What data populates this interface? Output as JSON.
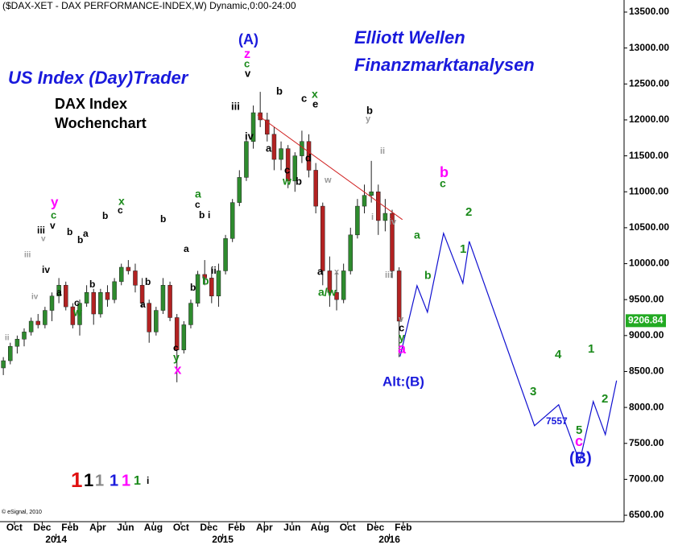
{
  "chart_data": {
    "type": "candlestick",
    "title": "($DAX-XET - DAX PERFORMANCE-INDEX,W) Dynamic,0:00-24:00",
    "copyright": "© eSignal, 2010",
    "up_color": "#2e8b2e",
    "down_color": "#b22222",
    "x": [
      -0.8,
      -0.3,
      0.2,
      0.7,
      1.2,
      1.7,
      2.2,
      2.7,
      3.2,
      3.7,
      4.2,
      4.7,
      5.2,
      5.7,
      6.2,
      6.7,
      7.2,
      7.7,
      8.2,
      8.7,
      9.2,
      9.7,
      10.2,
      10.7,
      11.2,
      11.7,
      12.2,
      12.7,
      13.2,
      13.7,
      14.2,
      14.7,
      15.2,
      15.7,
      16.2,
      16.7,
      17.2,
      17.7,
      18.2,
      18.7,
      19.2,
      19.7,
      20.2,
      20.7,
      21.2,
      21.7,
      22.2,
      22.7,
      23.2,
      23.7,
      24.2,
      24.7,
      25.2,
      25.7,
      26.2,
      26.7,
      27.2,
      27.7
    ],
    "open": [
      8550,
      8650,
      8850,
      8950,
      9050,
      9200,
      9150,
      9350,
      9550,
      9700,
      9400,
      9150,
      9450,
      9600,
      9300,
      9600,
      9500,
      9750,
      9950,
      9900,
      9700,
      9450,
      9050,
      9350,
      9700,
      9250,
      8800,
      9150,
      9450,
      9850,
      9800,
      9550,
      9900,
      10350,
      10850,
      11200,
      11700,
      12100,
      12000,
      11800,
      11450,
      11600,
      11150,
      11500,
      11700,
      11300,
      10800,
      9900,
      9600,
      9500,
      9900,
      10400,
      10800,
      10950,
      11000,
      10600,
      10700,
      9900
    ],
    "high": [
      8700,
      8900,
      9000,
      9100,
      9250,
      9300,
      9400,
      9600,
      9800,
      9750,
      9450,
      9500,
      9700,
      9650,
      9650,
      9700,
      9800,
      10000,
      10050,
      10000,
      9800,
      9500,
      9400,
      9800,
      9750,
      9300,
      9200,
      9500,
      9900,
      10050,
      9950,
      10000,
      10400,
      10900,
      11300,
      11800,
      12200,
      12390,
      12100,
      11900,
      11700,
      11650,
      11550,
      11850,
      11800,
      11400,
      10850,
      10100,
      9900,
      10000,
      10500,
      10900,
      11100,
      11430,
      11100,
      10900,
      10750,
      9950
    ],
    "low": [
      8450,
      8600,
      8750,
      8850,
      9000,
      9100,
      9100,
      9200,
      9450,
      9350,
      9100,
      9000,
      9400,
      9150,
      9250,
      9400,
      9450,
      9700,
      9850,
      9600,
      9400,
      8900,
      9000,
      9300,
      9200,
      8350,
      8750,
      9100,
      9400,
      9700,
      9450,
      9400,
      9850,
      10300,
      10800,
      11150,
      11600,
      11900,
      11700,
      11300,
      11300,
      11050,
      11000,
      11400,
      11200,
      10700,
      9700,
      9400,
      9350,
      9450,
      9850,
      10350,
      10700,
      10850,
      10400,
      10450,
      9800,
      8700
    ],
    "close": [
      8650,
      8850,
      8950,
      9050,
      9200,
      9150,
      9350,
      9550,
      9700,
      9400,
      9150,
      9450,
      9600,
      9300,
      9600,
      9500,
      9750,
      9950,
      9900,
      9700,
      9450,
      9050,
      9350,
      9700,
      9250,
      8800,
      9150,
      9450,
      9850,
      9800,
      9550,
      9900,
      10350,
      10850,
      11200,
      11700,
      12100,
      12000,
      11800,
      11450,
      11600,
      11150,
      11500,
      11700,
      11300,
      10800,
      9900,
      9600,
      9500,
      9900,
      10400,
      10800,
      10950,
      11000,
      10600,
      10700,
      9900,
      9200
    ],
    "last_price": 9206.84,
    "projection_color": "#1010d0",
    "projection_x": [
      27.77,
      28.99,
      29.74,
      30.9,
      32.29,
      32.75,
      37.45,
      39.19,
      40.7,
      41.68,
      42.55,
      43.36
    ],
    "projection_y": [
      8709,
      9694,
      9325,
      10422,
      9728,
      10310,
      7746,
      8037,
      7242,
      8082,
      7622,
      8373
    ],
    "trendline_color": "#d02020",
    "trendline_x": [
      17.5,
      27.94
    ],
    "trendline_y": [
      12069,
      10613
    ],
    "xlim": [
      -1.04,
      43.9
    ],
    "ylim": [
      6411,
      13668
    ],
    "yticks": [
      {
        "value": 6500,
        "label": "6500.00"
      },
      {
        "value": 7000,
        "label": "7000.00"
      },
      {
        "value": 7500,
        "label": "7500.00"
      },
      {
        "value": 8000,
        "label": "8000.00"
      },
      {
        "value": 8500,
        "label": "8500.00"
      },
      {
        "value": 9000,
        "label": "9000.00"
      },
      {
        "value": 9500,
        "label": "9500.00"
      },
      {
        "value": 10000,
        "label": "10000.00"
      },
      {
        "value": 10500,
        "label": "10500.00"
      },
      {
        "value": 11000,
        "label": "11000.00"
      },
      {
        "value": 11500,
        "label": "11500.00"
      },
      {
        "value": 12000,
        "label": "12000.00"
      },
      {
        "value": 12500,
        "label": "12500.00"
      },
      {
        "value": 13000,
        "label": "13000.00"
      },
      {
        "value": 13500,
        "label": "13500.00"
      }
    ],
    "xticks": [
      {
        "value": 0,
        "label": "Oct"
      },
      {
        "value": 2,
        "label": "Dec"
      },
      {
        "value": 4,
        "label": "Feb"
      },
      {
        "value": 6,
        "label": "Apr"
      },
      {
        "value": 8,
        "label": "Jun"
      },
      {
        "value": 10,
        "label": "Aug"
      },
      {
        "value": 12,
        "label": "Oct"
      },
      {
        "value": 14,
        "label": "Dec"
      },
      {
        "value": 16,
        "label": "Feb"
      },
      {
        "value": 18,
        "label": "Apr"
      },
      {
        "value": 20,
        "label": "Jun"
      },
      {
        "value": 22,
        "label": "Aug"
      },
      {
        "value": 24,
        "label": "Oct"
      },
      {
        "value": 26,
        "label": "Dec"
      },
      {
        "value": 28,
        "label": "Feb"
      }
    ],
    "year_ticks": [
      {
        "value": 3,
        "label": "2014"
      },
      {
        "value": 15,
        "label": "2015"
      },
      {
        "value": 27,
        "label": "2016"
      }
    ],
    "annotations": [
      {
        "text": "US Index (Day)Trader",
        "color": "#1a1adc"
      },
      {
        "text": "DAX Index",
        "color": "#000000"
      },
      {
        "text": "Wochenchart",
        "color": "#000000"
      },
      {
        "text": "Elliott Wellen",
        "color": "#1a1adc"
      },
      {
        "text": "Finanzmarktanalysen",
        "color": "#1a1adc"
      },
      {
        "text": "(A)",
        "color": "#1a1adc"
      },
      {
        "text": "z",
        "color": "#ff00ff"
      },
      {
        "text": "c",
        "color": "#1a8a1a"
      },
      {
        "text": "v",
        "color": "#000000"
      },
      {
        "text": "iii",
        "color": "#000000"
      },
      {
        "text": "iv",
        "color": "#000000"
      },
      {
        "text": "a",
        "color": "#000000"
      },
      {
        "text": "b",
        "color": "#000000"
      },
      {
        "text": "c",
        "color": "#000000"
      },
      {
        "text": "x",
        "color": "#1a8a1a"
      },
      {
        "text": "e",
        "color": "#000000"
      },
      {
        "text": "c",
        "color": "#000000"
      },
      {
        "text": "w",
        "color": "#1a8a1a"
      },
      {
        "text": "b",
        "color": "#000000"
      },
      {
        "text": "d",
        "color": "#000000"
      },
      {
        "text": "b",
        "color": "#000000"
      },
      {
        "text": "y",
        "color": "#999999"
      },
      {
        "text": "ii",
        "color": "#999999"
      },
      {
        "text": "w",
        "color": "#999999"
      },
      {
        "text": "a",
        "color": "#000000"
      },
      {
        "text": "x",
        "color": "#999999"
      },
      {
        "text": "a/w",
        "color": "#1a8a1a"
      },
      {
        "text": "i",
        "color": "#999999"
      },
      {
        "text": "iv",
        "color": "#999999"
      },
      {
        "text": "iii",
        "color": "#999999"
      },
      {
        "text": "v",
        "color": "#999999"
      },
      {
        "text": "c",
        "color": "#000000"
      },
      {
        "text": "y",
        "color": "#1a8a1a"
      },
      {
        "text": "a",
        "color": "#ff00ff"
      },
      {
        "text": "b",
        "color": "#ff00ff"
      },
      {
        "text": "c",
        "color": "#1a8a1a"
      },
      {
        "text": "2",
        "color": "#1a8a1a"
      },
      {
        "text": "1",
        "color": "#1a8a1a"
      },
      {
        "text": "a",
        "color": "#1a8a1a"
      },
      {
        "text": "b",
        "color": "#1a8a1a"
      },
      {
        "text": "3",
        "color": "#1a8a1a"
      },
      {
        "text": "4",
        "color": "#1a8a1a"
      },
      {
        "text": "7557",
        "color": "#1a1adc"
      },
      {
        "text": "5",
        "color": "#1a8a1a"
      },
      {
        "text": "c",
        "color": "#ff00ff"
      },
      {
        "text": "(B)",
        "color": "#1a1adc"
      },
      {
        "text": "1",
        "color": "#1a8a1a"
      },
      {
        "text": "2",
        "color": "#1a8a1a"
      },
      {
        "text": "Alt:(B)",
        "color": "#1a1adc"
      },
      {
        "text": "ii",
        "color": "#999999"
      },
      {
        "text": "iii",
        "color": "#999999"
      },
      {
        "text": "iv",
        "color": "#999999"
      },
      {
        "text": "v",
        "color": "#999999"
      },
      {
        "text": "iii",
        "color": "#000000"
      },
      {
        "text": "y",
        "color": "#ff00ff"
      },
      {
        "text": "c",
        "color": "#1a8a1a"
      },
      {
        "text": "v",
        "color": "#000000"
      },
      {
        "text": "iv",
        "color": "#000000"
      },
      {
        "text": "a",
        "color": "#000000"
      },
      {
        "text": "b",
        "color": "#000000"
      },
      {
        "text": "b",
        "color": "#000000"
      },
      {
        "text": "c",
        "color": "#000000"
      },
      {
        "text": "w",
        "color": "#1a8a1a"
      },
      {
        "text": "a",
        "color": "#000000"
      },
      {
        "text": "b",
        "color": "#000000"
      },
      {
        "text": "b",
        "color": "#000000"
      },
      {
        "text": "c",
        "color": "#000000"
      },
      {
        "text": "x",
        "color": "#1a8a1a"
      },
      {
        "text": "a",
        "color": "#000000"
      },
      {
        "text": "b",
        "color": "#000000"
      },
      {
        "text": "b",
        "color": "#000000"
      },
      {
        "text": "a",
        "color": "#000000"
      },
      {
        "text": "c",
        "color": "#000000"
      },
      {
        "text": "y",
        "color": "#1a8a1a"
      },
      {
        "text": "x",
        "color": "#ff00ff"
      },
      {
        "text": "b",
        "color": "#000000"
      },
      {
        "text": "b",
        "color": "#1a8a1a"
      },
      {
        "text": "a",
        "color": "#1a8a1a"
      },
      {
        "text": "c",
        "color": "#000000"
      },
      {
        "text": "b",
        "color": "#000000"
      },
      {
        "text": "i",
        "color": "#000000"
      },
      {
        "text": "ii",
        "color": "#000000"
      },
      {
        "text": "1",
        "color": "#e01010"
      },
      {
        "text": "1",
        "color": "#000000"
      },
      {
        "text": "1",
        "color": "#888888"
      },
      {
        "text": "1",
        "color": "#1a1adc"
      },
      {
        "text": "1",
        "color": "#ff00ff"
      },
      {
        "text": "1",
        "color": "#1a8a1a"
      },
      {
        "text": "i",
        "color": "#000000"
      }
    ]
  }
}
